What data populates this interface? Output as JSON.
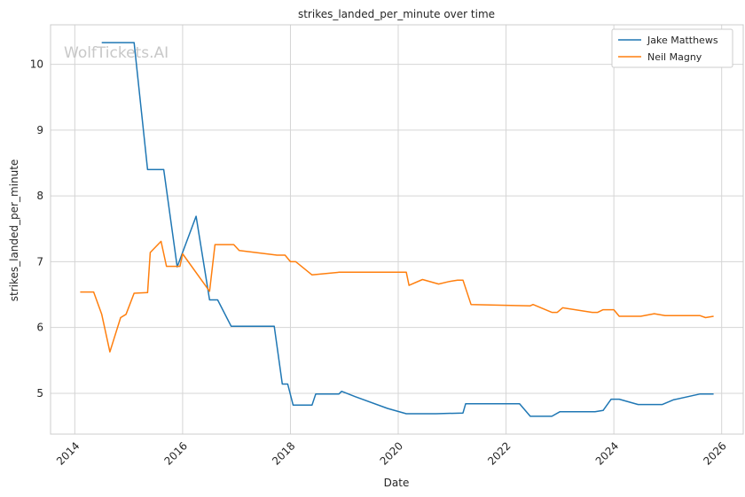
{
  "watermark": "WolfTickets.AI",
  "chart_data": {
    "type": "line",
    "title": "strikes_landed_per_minute over time",
    "xlabel": "Date",
    "ylabel": "strikes_landed_per_minute",
    "xlim": [
      2013.55,
      2026.4
    ],
    "ylim": [
      4.38,
      10.6
    ],
    "x_ticks": [
      2014,
      2016,
      2018,
      2020,
      2022,
      2024,
      2026
    ],
    "y_ticks": [
      5,
      6,
      7,
      8,
      9,
      10
    ],
    "grid": true,
    "legend_position": "top-right",
    "series": [
      {
        "name": "Jake Matthews",
        "color": "#1f77b4",
        "points": [
          [
            2014.5,
            10.33
          ],
          [
            2015.1,
            10.33
          ],
          [
            2015.35,
            8.4
          ],
          [
            2015.65,
            8.4
          ],
          [
            2015.9,
            6.92
          ],
          [
            2016.25,
            7.69
          ],
          [
            2016.5,
            6.42
          ],
          [
            2016.65,
            6.42
          ],
          [
            2016.9,
            6.02
          ],
          [
            2017.7,
            6.02
          ],
          [
            2017.85,
            5.14
          ],
          [
            2017.95,
            5.14
          ],
          [
            2018.05,
            4.82
          ],
          [
            2018.4,
            4.82
          ],
          [
            2018.47,
            4.99
          ],
          [
            2018.9,
            4.99
          ],
          [
            2018.95,
            5.03
          ],
          [
            2019.2,
            4.95
          ],
          [
            2019.8,
            4.77
          ],
          [
            2020.15,
            4.69
          ],
          [
            2020.7,
            4.69
          ],
          [
            2021.2,
            4.7
          ],
          [
            2021.25,
            4.84
          ],
          [
            2022.25,
            4.84
          ],
          [
            2022.45,
            4.65
          ],
          [
            2022.85,
            4.65
          ],
          [
            2023.0,
            4.72
          ],
          [
            2023.65,
            4.72
          ],
          [
            2023.8,
            4.74
          ],
          [
            2023.95,
            4.91
          ],
          [
            2024.1,
            4.91
          ],
          [
            2024.45,
            4.83
          ],
          [
            2024.9,
            4.83
          ],
          [
            2025.1,
            4.9
          ],
          [
            2025.6,
            4.99
          ],
          [
            2025.85,
            4.99
          ]
        ]
      },
      {
        "name": "Neil Magny",
        "color": "#ff7f0e",
        "points": [
          [
            2014.1,
            6.54
          ],
          [
            2014.35,
            6.54
          ],
          [
            2014.5,
            6.2
          ],
          [
            2014.65,
            5.63
          ],
          [
            2014.85,
            6.15
          ],
          [
            2014.95,
            6.2
          ],
          [
            2015.1,
            6.52
          ],
          [
            2015.35,
            6.53
          ],
          [
            2015.4,
            7.14
          ],
          [
            2015.6,
            7.31
          ],
          [
            2015.7,
            6.93
          ],
          [
            2015.95,
            6.93
          ],
          [
            2016.0,
            7.12
          ],
          [
            2016.5,
            6.55
          ],
          [
            2016.6,
            7.26
          ],
          [
            2016.95,
            7.26
          ],
          [
            2017.05,
            7.17
          ],
          [
            2017.75,
            7.1
          ],
          [
            2017.9,
            7.1
          ],
          [
            2018.0,
            7.0
          ],
          [
            2018.1,
            7.0
          ],
          [
            2018.4,
            6.8
          ],
          [
            2018.9,
            6.84
          ],
          [
            2020.15,
            6.84
          ],
          [
            2020.2,
            6.64
          ],
          [
            2020.45,
            6.73
          ],
          [
            2020.75,
            6.66
          ],
          [
            2020.95,
            6.7
          ],
          [
            2021.1,
            6.72
          ],
          [
            2021.2,
            6.72
          ],
          [
            2021.35,
            6.35
          ],
          [
            2022.45,
            6.33
          ],
          [
            2022.5,
            6.35
          ],
          [
            2022.85,
            6.23
          ],
          [
            2022.95,
            6.23
          ],
          [
            2023.05,
            6.3
          ],
          [
            2023.6,
            6.23
          ],
          [
            2023.7,
            6.23
          ],
          [
            2023.8,
            6.27
          ],
          [
            2024.0,
            6.27
          ],
          [
            2024.1,
            6.17
          ],
          [
            2024.5,
            6.17
          ],
          [
            2024.75,
            6.21
          ],
          [
            2024.95,
            6.18
          ],
          [
            2025.6,
            6.18
          ],
          [
            2025.7,
            6.15
          ],
          [
            2025.85,
            6.17
          ]
        ]
      }
    ]
  }
}
